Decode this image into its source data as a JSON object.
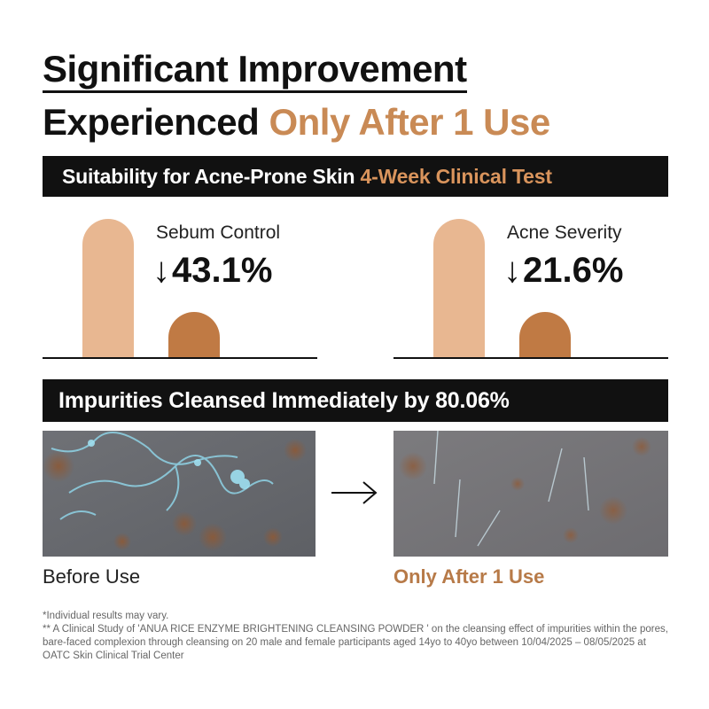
{
  "headline": {
    "line1": "Significant Improvement",
    "line2_prefix": "Experienced ",
    "line2_accent": "Only After 1 Use"
  },
  "banner_clinical": {
    "text": "Suitability for Acne-Prone Skin ",
    "accent": "4-Week Clinical Test"
  },
  "metrics": [
    {
      "label": "Sebum Control",
      "arrow": "↓",
      "value": "43.1%",
      "before_level": 1.0,
      "after_level": 0.326
    },
    {
      "label": "Acne Severity",
      "arrow": "↓",
      "value": "21.6%",
      "before_level": 1.0,
      "after_level": 0.326
    }
  ],
  "banner_impurities": {
    "text": "Impurities Cleansed Immediately by 80.06%"
  },
  "photos": {
    "before_caption": "Before Use",
    "after_caption": "Only After 1 Use",
    "arrow": "→"
  },
  "footnotes": {
    "line1": "*Individual results may vary.",
    "line2": "** A Clinical Study of 'ANUA RICE ENZYME BRIGHTENING CLEANSING POWDER ' on the cleansing effect of impurities within the pores, bare-faced complexion through cleansing on 20 male and female participants aged 14yo to 40yo between 10/04/2025 – 08/05/2025 at OATC Skin Clinical Trial Center"
  },
  "colors": {
    "accent": "#c98a55",
    "bar_before": "#e8b791",
    "bar_after": "#c07a44",
    "banner_bg": "#111111"
  }
}
